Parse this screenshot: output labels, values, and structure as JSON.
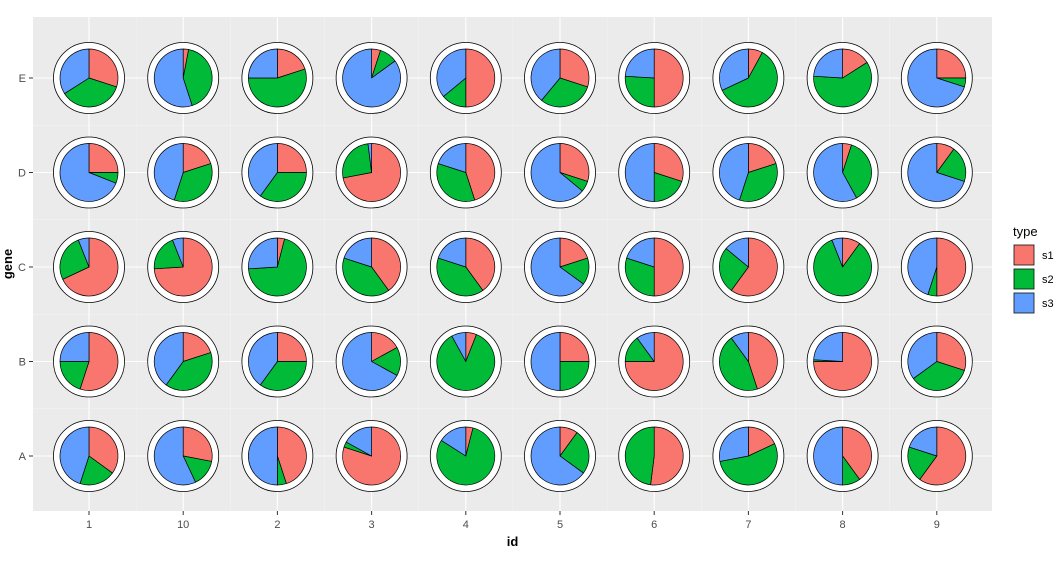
{
  "chart_data": {
    "type": "pie",
    "description": "Grid of pie charts (scatterpie) by id and gene",
    "xlabel": "id",
    "ylabel": "gene",
    "x_categories": [
      "1",
      "10",
      "2",
      "3",
      "4",
      "5",
      "6",
      "7",
      "8",
      "9"
    ],
    "y_categories": [
      "A",
      "B",
      "C",
      "D",
      "E"
    ],
    "legend": {
      "title": "type",
      "position": "right",
      "entries": [
        {
          "name": "s1",
          "color": "#F8766D"
        },
        {
          "name": "s2",
          "color": "#00BA38"
        },
        {
          "name": "s3",
          "color": "#619CFF"
        }
      ]
    },
    "panel_background": "#EBEBEB",
    "grid": true,
    "pies": {
      "E": [
        [
          0.3,
          0.36,
          0.34
        ],
        [
          0.03,
          0.42,
          0.55
        ],
        [
          0.2,
          0.55,
          0.25
        ],
        [
          0.05,
          0.1,
          0.85
        ],
        [
          0.5,
          0.14,
          0.36
        ],
        [
          0.3,
          0.31,
          0.39
        ],
        [
          0.5,
          0.26,
          0.24
        ],
        [
          0.08,
          0.6,
          0.32
        ],
        [
          0.16,
          0.6,
          0.24
        ],
        [
          0.25,
          0.05,
          0.7
        ]
      ],
      "D": [
        [
          0.25,
          0.06,
          0.69
        ],
        [
          0.2,
          0.35,
          0.45
        ],
        [
          0.25,
          0.35,
          0.4
        ],
        [
          0.72,
          0.26,
          0.02
        ],
        [
          0.45,
          0.35,
          0.2
        ],
        [
          0.3,
          0.06,
          0.64
        ],
        [
          0.3,
          0.2,
          0.5
        ],
        [
          0.2,
          0.35,
          0.45
        ],
        [
          0.05,
          0.37,
          0.58
        ],
        [
          0.1,
          0.2,
          0.7
        ]
      ],
      "C": [
        [
          0.68,
          0.26,
          0.06
        ],
        [
          0.74,
          0.2,
          0.06
        ],
        [
          0.04,
          0.7,
          0.26
        ],
        [
          0.4,
          0.4,
          0.2
        ],
        [
          0.4,
          0.4,
          0.2
        ],
        [
          0.2,
          0.15,
          0.65
        ],
        [
          0.5,
          0.3,
          0.2
        ],
        [
          0.6,
          0.26,
          0.14
        ],
        [
          0.1,
          0.84,
          0.06
        ],
        [
          0.5,
          0.05,
          0.45
        ]
      ],
      "B": [
        [
          0.55,
          0.2,
          0.25
        ],
        [
          0.2,
          0.4,
          0.4
        ],
        [
          0.25,
          0.35,
          0.4
        ],
        [
          0.17,
          0.16,
          0.67
        ],
        [
          0.06,
          0.86,
          0.08
        ],
        [
          0.25,
          0.25,
          0.5
        ],
        [
          0.75,
          0.15,
          0.1
        ],
        [
          0.45,
          0.45,
          0.1
        ],
        [
          0.75,
          0.01,
          0.24
        ],
        [
          0.3,
          0.35,
          0.35
        ]
      ],
      "A": [
        [
          0.35,
          0.2,
          0.45
        ],
        [
          0.28,
          0.15,
          0.57
        ],
        [
          0.45,
          0.05,
          0.5
        ],
        [
          0.8,
          0.03,
          0.17
        ],
        [
          0.04,
          0.8,
          0.16
        ],
        [
          0.1,
          0.25,
          0.65
        ],
        [
          0.52,
          0.48,
          0.0
        ],
        [
          0.18,
          0.54,
          0.28
        ],
        [
          0.4,
          0.1,
          0.5
        ],
        [
          0.6,
          0.2,
          0.2
        ]
      ]
    }
  }
}
